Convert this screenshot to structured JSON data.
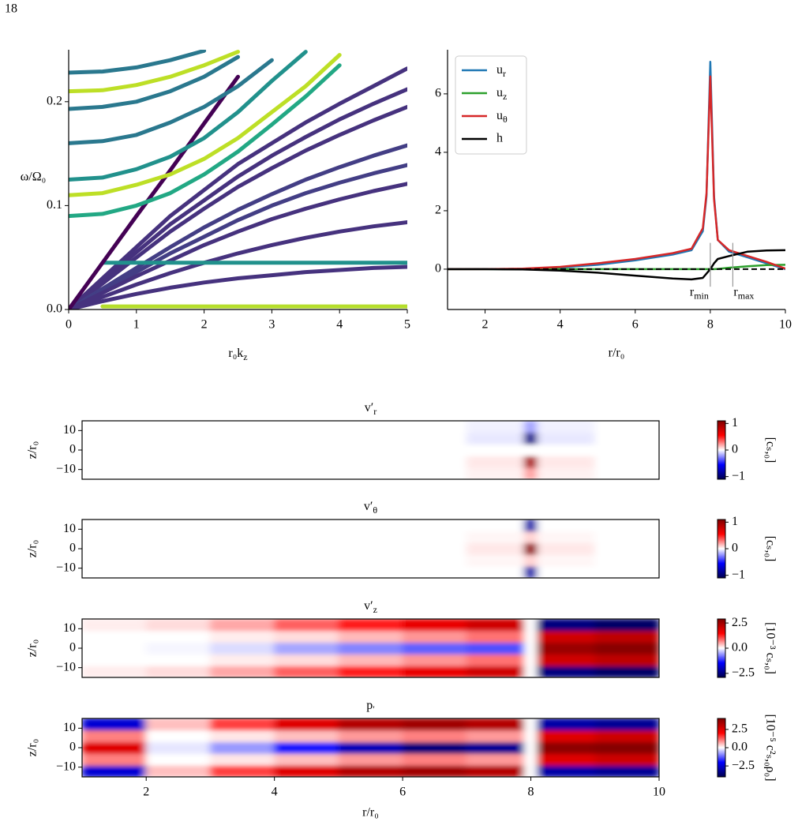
{
  "page_number": "18",
  "chart_data": [
    {
      "type": "line",
      "xlabel": "r₀kz",
      "ylabel": "ω/Ω₀",
      "xlim": [
        0,
        5
      ],
      "ylim": [
        0,
        0.25
      ],
      "xticks": [
        0,
        1,
        2,
        3,
        4,
        5
      ],
      "yticks": [
        {
          "value": 0,
          "label": "0.0"
        },
        0.1,
        0.2
      ],
      "x": [
        0,
        0.5,
        1,
        1.5,
        2,
        2.5,
        3,
        3.5,
        4,
        4.5,
        5
      ],
      "series": [
        {
          "color": "#46327e",
          "values": [
            0,
            0.03,
            0.06,
            0.09,
            0.115,
            0.14,
            0.16,
            0.18,
            0.198,
            0.215,
            0.232
          ]
        },
        {
          "color": "#46327e",
          "values": [
            0,
            0.028,
            0.055,
            0.082,
            0.105,
            0.128,
            0.148,
            0.166,
            0.183,
            0.198,
            0.212
          ]
        },
        {
          "color": "#46327e",
          "values": [
            0,
            0.025,
            0.05,
            0.075,
            0.097,
            0.118,
            0.136,
            0.153,
            0.168,
            0.182,
            0.195
          ]
        },
        {
          "color": "#433e85",
          "values": [
            0,
            0.02,
            0.04,
            0.06,
            0.079,
            0.096,
            0.111,
            0.125,
            0.137,
            0.148,
            0.158
          ]
        },
        {
          "color": "#433e85",
          "values": [
            0,
            0.018,
            0.036,
            0.054,
            0.07,
            0.086,
            0.1,
            0.112,
            0.122,
            0.131,
            0.139
          ]
        },
        {
          "color": "#46327e",
          "values": [
            0,
            0.016,
            0.032,
            0.047,
            0.062,
            0.075,
            0.087,
            0.097,
            0.106,
            0.114,
            0.121
          ]
        },
        {
          "color": "#46327e",
          "values": [
            0,
            0.012,
            0.024,
            0.035,
            0.045,
            0.054,
            0.062,
            0.069,
            0.075,
            0.08,
            0.084
          ]
        },
        {
          "color": "#46327e",
          "values": [
            0,
            0.008,
            0.015,
            0.021,
            0.026,
            0.03,
            0.033,
            0.036,
            0.038,
            0.04,
            0.041
          ]
        },
        {
          "color": "#21918c",
          "values": [
            null,
            0.045,
            0.045,
            0.045,
            0.045,
            0.045,
            0.045,
            0.045,
            0.045,
            0.045,
            0.045
          ]
        },
        {
          "color": "#b5de2b",
          "values": [
            null,
            0.003,
            0.003,
            0.003,
            0.003,
            0.003,
            0.003,
            0.003,
            0.003,
            0.003,
            0.003
          ]
        },
        {
          "color": "#440154",
          "values": [
            0,
            0.045,
            0.09,
            0.134,
            0.179,
            0.224,
            null,
            null,
            null,
            null,
            null
          ]
        },
        {
          "color": "#2a788e",
          "values": [
            0.228,
            0.229,
            0.233,
            0.24,
            0.249,
            null,
            null,
            null,
            null,
            null,
            null
          ]
        },
        {
          "color": "#bddf26",
          "values": [
            0.21,
            0.211,
            0.216,
            0.224,
            0.235,
            0.248,
            null,
            null,
            null,
            null,
            null
          ]
        },
        {
          "color": "#2a788e",
          "values": [
            0.193,
            0.195,
            0.2,
            0.21,
            0.224,
            0.243,
            null,
            null,
            null,
            null,
            null
          ]
        },
        {
          "color": "#2a788e",
          "values": [
            0.16,
            0.162,
            0.168,
            0.18,
            0.195,
            0.215,
            0.24,
            null,
            null,
            null,
            null
          ]
        },
        {
          "color": "#21918c",
          "values": [
            0.125,
            0.127,
            0.135,
            0.147,
            0.165,
            0.19,
            0.22,
            0.248,
            null,
            null,
            null
          ]
        },
        {
          "color": "#bddf26",
          "values": [
            0.11,
            0.112,
            0.12,
            0.13,
            0.145,
            0.165,
            0.19,
            0.215,
            0.245,
            null,
            null
          ]
        },
        {
          "color": "#22a884",
          "values": [
            0.09,
            0.092,
            0.1,
            0.112,
            0.13,
            0.152,
            0.178,
            0.205,
            0.235,
            null,
            null
          ]
        }
      ]
    },
    {
      "type": "line",
      "xlabel": "r/r₀",
      "xlim": [
        1,
        10
      ],
      "ylim": [
        -1.38,
        7.51
      ],
      "xticks": [
        2,
        4,
        6,
        8,
        10
      ],
      "yticks": [
        0,
        2,
        4,
        6
      ],
      "legend": "upper left",
      "hline": 0,
      "x": [
        1,
        2,
        3,
        4,
        5,
        6,
        7,
        7.5,
        7.8,
        7.9,
        8,
        8.1,
        8.2,
        8.5,
        9,
        9.5,
        10
      ],
      "series": [
        {
          "name": "ur",
          "color": "#1f77b4",
          "values": [
            0,
            0,
            0.01,
            0.06,
            0.15,
            0.3,
            0.5,
            0.65,
            1.3,
            2.5,
            7.1,
            2.5,
            1.0,
            0.6,
            0.4,
            0.2,
            0.0
          ]
        },
        {
          "name": "uz",
          "color": "#2ca02c",
          "values": [
            0,
            0,
            0,
            0,
            0,
            0,
            0,
            0,
            0,
            0,
            0,
            0,
            0.01,
            0.05,
            0.1,
            0.14,
            0.15
          ]
        },
        {
          "name": "uθ",
          "color": "#d62728",
          "values": [
            0,
            0,
            0.02,
            0.08,
            0.2,
            0.35,
            0.55,
            0.7,
            1.4,
            2.6,
            6.6,
            2.4,
            1.0,
            0.65,
            0.45,
            0.25,
            0.02
          ]
        },
        {
          "name": "h",
          "color": "#000000",
          "values": [
            0,
            0,
            -0.01,
            -0.05,
            -0.12,
            -0.22,
            -0.32,
            -0.35,
            -0.3,
            -0.15,
            0,
            0.2,
            0.35,
            0.45,
            0.6,
            0.64,
            0.65
          ]
        }
      ],
      "annotations": [
        {
          "text": "rmin",
          "x": 8
        },
        {
          "text": "rmax",
          "x": 8.6
        }
      ]
    },
    {
      "type": "heatmap",
      "title": "v′r",
      "ylabel": "z/r₀",
      "colorbar_label": "[cₛ,₀]",
      "xlim": [
        1,
        10
      ],
      "ylim": [
        -15,
        15
      ],
      "yticks": [
        10,
        0,
        {
          "value": -10,
          "label": "−10"
        }
      ],
      "clim": [
        -1.1,
        1.1
      ],
      "cticks": [
        1,
        0,
        {
          "value": -1,
          "label": "−1"
        }
      ],
      "x_edges": [
        1,
        2,
        3,
        4,
        5,
        6,
        7,
        7.9,
        8.1,
        9,
        10
      ],
      "y_edges": [
        -15,
        -9,
        -3,
        3,
        9,
        15
      ],
      "z": [
        [
          0,
          0,
          0,
          0,
          0,
          0,
          0.03,
          0.2,
          0.03,
          0
        ],
        [
          0,
          0,
          0,
          0,
          0,
          0,
          0.05,
          0.9,
          0.05,
          0
        ],
        [
          0,
          0,
          0,
          0,
          0,
          0,
          0,
          0,
          0,
          0
        ],
        [
          0,
          0,
          0,
          0,
          0,
          0,
          -0.05,
          -0.9,
          -0.05,
          0
        ],
        [
          0,
          0,
          0,
          0,
          0,
          0,
          -0.03,
          -0.2,
          -0.03,
          0
        ]
      ]
    },
    {
      "type": "heatmap",
      "title": "v′θ",
      "ylabel": "z/r₀",
      "colorbar_label": "[cₛ,₀]",
      "xlim": [
        1,
        10
      ],
      "ylim": [
        -15,
        15
      ],
      "yticks": [
        10,
        0,
        {
          "value": -10,
          "label": "−10"
        }
      ],
      "clim": [
        -1.1,
        1.1
      ],
      "cticks": [
        1,
        0,
        {
          "value": -1,
          "label": "−1"
        }
      ],
      "x_edges": [
        1,
        2,
        3,
        4,
        5,
        6,
        7,
        7.9,
        8.1,
        9,
        10
      ],
      "y_edges": [
        -15,
        -9,
        -3,
        3,
        9,
        15
      ],
      "z": [
        [
          0,
          0,
          0,
          0,
          0,
          0,
          0,
          -0.8,
          0,
          0
        ],
        [
          0,
          0,
          0,
          0,
          0,
          0,
          0.02,
          0.1,
          0.02,
          0
        ],
        [
          0,
          0,
          0,
          0,
          0,
          0,
          0.05,
          1.0,
          0.05,
          0
        ],
        [
          0,
          0,
          0,
          0,
          0,
          0,
          0.02,
          0.1,
          0.02,
          0
        ],
        [
          0,
          0,
          0,
          0,
          0,
          0,
          0,
          -0.8,
          0,
          0
        ]
      ]
    },
    {
      "type": "heatmap",
      "title": "v′z",
      "ylabel": "z/r₀",
      "colorbar_label": "[10⁻³ cₛ,₀]",
      "xlim": [
        1,
        10
      ],
      "ylim": [
        -15,
        15
      ],
      "yticks": [
        10,
        0,
        {
          "value": -10,
          "label": "−10"
        }
      ],
      "clim": [
        -2.9,
        2.9
      ],
      "cticks": [
        2.5,
        {
          "value": 0,
          "label": "0.0"
        },
        {
          "value": -2.5,
          "label": "−2.5"
        }
      ],
      "x_edges": [
        1,
        2,
        3,
        4,
        5,
        6,
        7,
        7.9,
        8.1,
        9,
        10
      ],
      "y_edges": [
        -15,
        -9,
        -3,
        3,
        9,
        15
      ],
      "z": [
        [
          0.1,
          0.2,
          0.5,
          0.9,
          1.3,
          1.7,
          2.0,
          0,
          -2.5,
          -2.7
        ],
        [
          0,
          0,
          0.1,
          0.2,
          0.4,
          0.6,
          0.8,
          0,
          2.0,
          2.2
        ],
        [
          0,
          -0.05,
          -0.2,
          -0.5,
          -0.7,
          -0.9,
          -1.0,
          0,
          2.6,
          2.8
        ],
        [
          0,
          0,
          0.1,
          0.2,
          0.4,
          0.6,
          0.8,
          0,
          2.0,
          2.2
        ],
        [
          0.1,
          0.2,
          0.5,
          0.9,
          1.3,
          1.7,
          2.0,
          0,
          -2.5,
          -2.7
        ]
      ]
    },
    {
      "type": "heatmap",
      "title": "p′",
      "ylabel": "z/r₀",
      "xlabel": "r/r₀",
      "colorbar_label": "[10⁻⁵ c²ₛ,₀ρ₀]",
      "xlim": [
        1,
        10
      ],
      "ylim": [
        -15,
        15
      ],
      "xticks": [
        2,
        4,
        6,
        8,
        10
      ],
      "yticks": [
        10,
        0,
        {
          "value": -10,
          "label": "−10"
        }
      ],
      "clim": [
        -4,
        4
      ],
      "cticks": [
        2.5,
        {
          "value": 0,
          "label": "0.0"
        },
        {
          "value": -2.5,
          "label": "−2.5"
        }
      ],
      "x_edges": [
        1,
        2,
        3,
        4,
        5,
        6,
        7,
        7.9,
        8.1,
        9,
        10
      ],
      "y_edges": [
        -15,
        -9,
        -3,
        3,
        9,
        15
      ],
      "z": [
        [
          -2.5,
          0.5,
          1.5,
          2.5,
          3.2,
          3.5,
          3.2,
          0,
          -3,
          -3.2
        ],
        [
          1,
          0,
          0.2,
          0.5,
          0.8,
          1,
          0.8,
          0,
          2.5,
          2.8
        ],
        [
          2.5,
          -0.2,
          -0.8,
          -1.8,
          -2.8,
          -3.5,
          -3.2,
          0,
          3.8,
          3.9
        ],
        [
          1,
          0,
          0.2,
          0.5,
          0.8,
          1,
          0.8,
          0,
          2.5,
          2.8
        ],
        [
          -2.5,
          0.5,
          1.5,
          2.5,
          3.2,
          3.5,
          3.2,
          0,
          -3,
          -3.2
        ]
      ]
    }
  ]
}
